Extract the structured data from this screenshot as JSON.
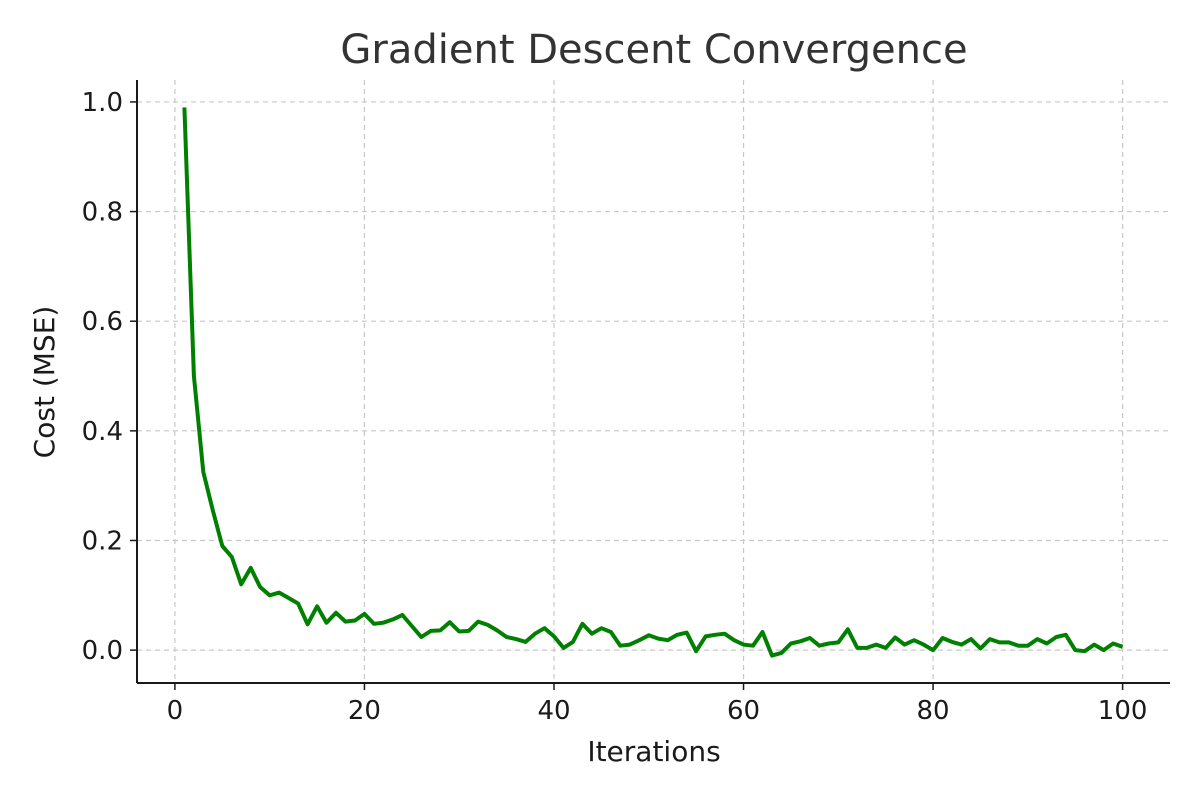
{
  "chart_data": {
    "type": "line",
    "title": "Gradient Descent Convergence",
    "xlabel": "Iterations",
    "ylabel": "Cost (MSE)",
    "xlim": [
      -4,
      105
    ],
    "ylim": [
      -0.06,
      1.04
    ],
    "xticks": [
      0,
      20,
      40,
      60,
      80,
      100
    ],
    "yticks": [
      0.0,
      0.2,
      0.4,
      0.6,
      0.8,
      1.0
    ],
    "xtick_labels": [
      "0",
      "20",
      "40",
      "60",
      "80",
      "100"
    ],
    "ytick_labels": [
      "0.0",
      "0.2",
      "0.4",
      "0.6",
      "0.8",
      "1.0"
    ],
    "grid": true,
    "legend": "none",
    "series": [
      {
        "color": "#008000",
        "x": [
          1,
          2,
          3,
          4,
          5,
          6,
          7,
          8,
          9,
          10,
          11,
          12,
          13,
          14,
          15,
          16,
          17,
          18,
          19,
          20,
          21,
          22,
          23,
          24,
          25,
          26,
          27,
          28,
          29,
          30,
          31,
          32,
          33,
          34,
          35,
          36,
          37,
          38,
          39,
          40,
          41,
          42,
          43,
          44,
          45,
          46,
          47,
          48,
          49,
          50,
          51,
          52,
          53,
          54,
          55,
          56,
          57,
          58,
          59,
          60,
          61,
          62,
          63,
          64,
          65,
          66,
          67,
          68,
          69,
          70,
          71,
          72,
          73,
          74,
          75,
          76,
          77,
          78,
          79,
          80,
          81,
          82,
          83,
          84,
          85,
          86,
          87,
          88,
          89,
          90,
          91,
          92,
          93,
          94,
          95,
          96,
          97,
          98,
          99,
          100
        ],
        "y": [
          0.99,
          0.5,
          0.325,
          0.255,
          0.19,
          0.17,
          0.12,
          0.15,
          0.115,
          0.1,
          0.105,
          0.095,
          0.085,
          0.047,
          0.08,
          0.05,
          0.068,
          0.052,
          0.054,
          0.066,
          0.048,
          0.05,
          0.056,
          0.064,
          0.044,
          0.024,
          0.035,
          0.036,
          0.051,
          0.034,
          0.035,
          0.052,
          0.046,
          0.036,
          0.024,
          0.02,
          0.015,
          0.03,
          0.04,
          0.025,
          0.004,
          0.015,
          0.048,
          0.03,
          0.04,
          0.033,
          0.008,
          0.01,
          0.018,
          0.027,
          0.021,
          0.018,
          0.028,
          0.032,
          -0.002,
          0.025,
          0.028,
          0.03,
          0.018,
          0.01,
          0.008,
          0.033,
          -0.01,
          -0.005,
          0.012,
          0.016,
          0.022,
          0.008,
          0.012,
          0.014,
          0.038,
          0.004,
          0.004,
          0.01,
          0.004,
          0.023,
          0.01,
          0.018,
          0.01,
          0.0,
          0.022,
          0.015,
          0.01,
          0.02,
          0.003,
          0.02,
          0.014,
          0.014,
          0.008,
          0.008,
          0.02,
          0.012,
          0.024,
          0.028,
          0.0,
          -0.002,
          0.01,
          0.0,
          0.012,
          0.006
        ]
      }
    ]
  }
}
